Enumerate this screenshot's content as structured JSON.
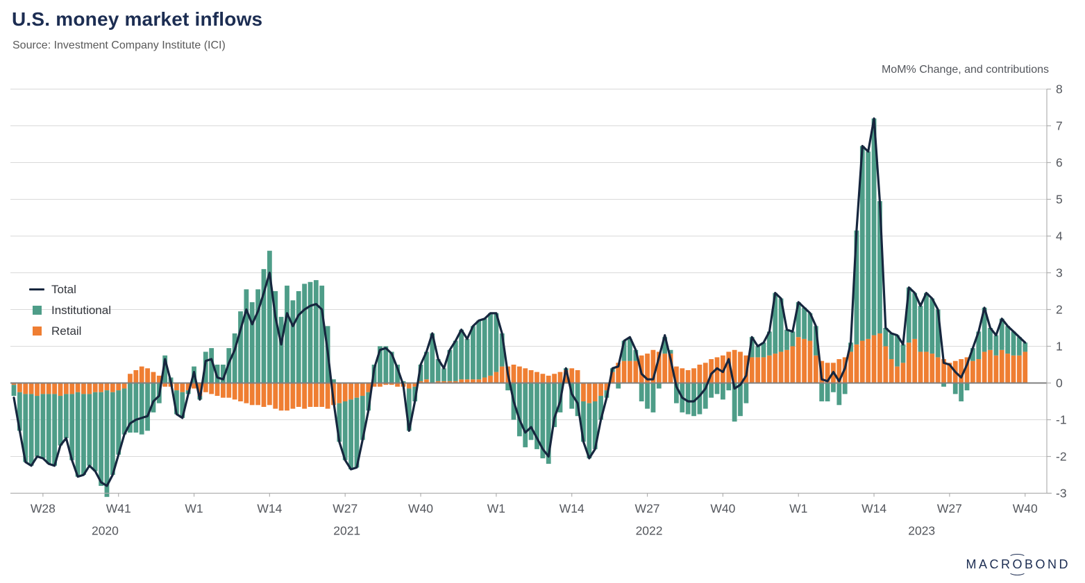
{
  "header": {
    "title": "U.S. money market inflows",
    "source": "Source: Investment Company Institute (ICI)"
  },
  "annotation": "MoM% Change, and contributions",
  "legend": [
    {
      "label": "Total",
      "type": "line",
      "color": "#16263e"
    },
    {
      "label": "Institutional",
      "type": "square",
      "color": "#4e9d88"
    },
    {
      "label": "Retail",
      "type": "square",
      "color": "#ef7e32"
    }
  ],
  "logo": {
    "pre": "MACR",
    "o": "O",
    "post": "BOND"
  },
  "colors": {
    "title": "#1c2d52",
    "text_gray": "#53565c",
    "grid": "#d9d9d9",
    "zero_line": "#7f7f7f",
    "axis": "#b0b0b0",
    "background": "#ffffff"
  },
  "chart_data": {
    "type": "bar",
    "subtype": "weekly stacked contribution bars with total line overlay",
    "title": "U.S. money market inflows",
    "ylabel": "MoM% Change, and contributions",
    "ylim": [
      -3,
      8
    ],
    "yticks": [
      -3,
      -2,
      -1,
      0,
      1,
      2,
      3,
      4,
      5,
      6,
      7,
      8
    ],
    "grid": true,
    "legend_position": "upper-left",
    "x_ticks": [
      {
        "index": 5,
        "label": "W28"
      },
      {
        "index": 18,
        "label": "W41"
      },
      {
        "index": 31,
        "label": "W1"
      },
      {
        "index": 44,
        "label": "W14"
      },
      {
        "index": 57,
        "label": "W27"
      },
      {
        "index": 70,
        "label": "W40"
      },
      {
        "index": 83,
        "label": "W1"
      },
      {
        "index": 96,
        "label": "W14"
      },
      {
        "index": 109,
        "label": "W27"
      },
      {
        "index": 122,
        "label": "W40"
      },
      {
        "index": 135,
        "label": "W1"
      },
      {
        "index": 148,
        "label": "W14"
      },
      {
        "index": 161,
        "label": "W27"
      },
      {
        "index": 174,
        "label": "W40"
      }
    ],
    "year_labels": [
      {
        "label": "2020",
        "index": 15.7
      },
      {
        "label": "2021",
        "index": 57.3
      },
      {
        "label": "2022",
        "index": 109.3
      },
      {
        "label": "2023",
        "index": 156.2
      }
    ],
    "series": [
      {
        "name": "Retail",
        "type": "bar",
        "color": "#ef7e32",
        "values": [
          -0.05,
          -0.25,
          -0.3,
          -0.3,
          -0.35,
          -0.3,
          -0.3,
          -0.3,
          -0.35,
          -0.3,
          -0.3,
          -0.25,
          -0.3,
          -0.3,
          -0.25,
          -0.25,
          -0.2,
          -0.25,
          -0.2,
          -0.15,
          0.25,
          0.35,
          0.45,
          0.4,
          0.3,
          0.2,
          -0.1,
          -0.1,
          -0.2,
          -0.25,
          -0.2,
          -0.15,
          -0.35,
          -0.25,
          -0.3,
          -0.35,
          -0.4,
          -0.4,
          -0.45,
          -0.5,
          -0.55,
          -0.6,
          -0.6,
          -0.65,
          -0.6,
          -0.7,
          -0.75,
          -0.75,
          -0.7,
          -0.65,
          -0.7,
          -0.65,
          -0.65,
          -0.65,
          -0.7,
          -0.6,
          -0.55,
          -0.5,
          -0.45,
          -0.4,
          -0.35,
          -0.25,
          -0.1,
          -0.1,
          -0.05,
          -0.05,
          -0.1,
          -0.1,
          -0.15,
          -0.1,
          0.05,
          0.1,
          0,
          0.05,
          0.05,
          0.05,
          0.05,
          0.1,
          0.1,
          0.1,
          0.1,
          0.15,
          0.2,
          0.3,
          0.45,
          0.45,
          0.5,
          0.45,
          0.4,
          0.35,
          0.3,
          0.25,
          0.2,
          0.25,
          0.3,
          0.35,
          0.4,
          0.35,
          -0.5,
          -0.55,
          -0.5,
          -0.35,
          -0.2,
          0.3,
          0.55,
          0.6,
          0.6,
          0.6,
          0.75,
          0.8,
          0.9,
          0.85,
          0.8,
          0.8,
          0.45,
          0.4,
          0.35,
          0.4,
          0.5,
          0.55,
          0.65,
          0.7,
          0.75,
          0.85,
          0.9,
          0.85,
          0.75,
          0.7,
          0.7,
          0.7,
          0.75,
          0.8,
          0.85,
          0.9,
          1,
          1.25,
          1.2,
          1.15,
          0.75,
          0.6,
          0.55,
          0.55,
          0.65,
          0.7,
          0.85,
          1.05,
          1.15,
          1.2,
          1.3,
          1.35,
          1,
          0.65,
          0.45,
          0.55,
          1.1,
          1.2,
          0.85,
          0.85,
          0.8,
          0.7,
          0.65,
          0.55,
          0.6,
          0.65,
          0.7,
          0.6,
          0.65,
          0.85,
          0.9,
          0.75,
          0.9,
          0.8,
          0.75,
          0.75,
          0.85
        ]
      },
      {
        "name": "Institutional",
        "type": "bar",
        "color": "#4e9d88",
        "values": [
          -0.3,
          -1.05,
          -1.85,
          -1.95,
          -1.65,
          -1.75,
          -1.9,
          -1.95,
          -1.35,
          -1.2,
          -1.8,
          -2.3,
          -2.2,
          -1.95,
          -2.15,
          -2.55,
          -2.9,
          -2.25,
          -1.75,
          -1.25,
          -1.35,
          -1.35,
          -1.4,
          -1.3,
          -0.8,
          -0.55,
          0.75,
          0.15,
          -0.65,
          -0.7,
          -0.1,
          0.45,
          -0.1,
          0.85,
          0.95,
          0.5,
          0.5,
          0.95,
          1.35,
          1.95,
          2.55,
          2.2,
          2.55,
          3.1,
          3.6,
          2.5,
          1.8,
          2.65,
          2.25,
          2.5,
          2.7,
          2.75,
          2.8,
          2.65,
          1.55,
          0.1,
          -1.05,
          -1.6,
          -1.9,
          -1.9,
          -1.2,
          -0.5,
          0.5,
          1,
          1,
          0.85,
          0.5,
          0.05,
          -1.15,
          -0.4,
          0.45,
          0.75,
          1.35,
          0.6,
          0.35,
          0.85,
          1.1,
          1.35,
          1.1,
          1.45,
          1.6,
          1.6,
          1.7,
          1.6,
          0.9,
          -0.2,
          -1,
          -1.45,
          -1.75,
          -1.55,
          -1.8,
          -2.05,
          -2.2,
          -1.2,
          -0.8,
          0.05,
          -0.7,
          -0.9,
          -1.1,
          -1.5,
          -1.3,
          -0.65,
          -0.2,
          0.1,
          -0.15,
          0.55,
          0.6,
          0.3,
          -0.5,
          -0.7,
          -0.8,
          -0.15,
          0.45,
          0.1,
          -0.55,
          -0.8,
          -0.85,
          -0.9,
          -0.85,
          -0.7,
          -0.4,
          -0.3,
          -0.45,
          -0.2,
          -1.05,
          -0.9,
          -0.55,
          0.55,
          0.3,
          0.4,
          0.65,
          1.65,
          1.45,
          0.55,
          0.4,
          0.95,
          0.85,
          0.75,
          0.8,
          -0.5,
          -0.5,
          -0.25,
          -0.6,
          -0.3,
          0.25,
          3.1,
          5.3,
          5.1,
          5.9,
          3.6,
          0.5,
          0.7,
          0.85,
          0.5,
          1.5,
          1.25,
          1.25,
          1.6,
          1.5,
          1.3,
          -0.1,
          0,
          -0.3,
          -0.5,
          -0.2,
          0.35,
          0.75,
          1.2,
          0.6,
          0.55,
          0.85,
          0.75,
          0.65,
          0.5,
          0.25
        ]
      },
      {
        "name": "Total",
        "type": "line",
        "color": "#16263e",
        "values": [
          -0.4,
          -1.3,
          -2.15,
          -2.25,
          -2,
          -2.05,
          -2.2,
          -2.25,
          -1.7,
          -1.5,
          -2.1,
          -2.55,
          -2.5,
          -2.25,
          -2.4,
          -2.7,
          -2.8,
          -2.5,
          -1.95,
          -1.4,
          -1.1,
          -1,
          -0.95,
          -0.9,
          -0.5,
          -0.35,
          0.65,
          0.05,
          -0.85,
          -0.95,
          -0.3,
          0.3,
          -0.45,
          0.6,
          0.65,
          0.15,
          0.1,
          0.55,
          0.9,
          1.45,
          2,
          1.6,
          1.95,
          2.45,
          3,
          1.8,
          1.05,
          1.9,
          1.55,
          1.85,
          2,
          2.1,
          2.15,
          2,
          0.85,
          -0.5,
          -1.6,
          -2.1,
          -2.35,
          -2.3,
          -1.55,
          -0.75,
          0.4,
          0.9,
          0.95,
          0.8,
          0.4,
          -0.05,
          -1.3,
          -0.5,
          0.5,
          0.85,
          1.35,
          0.65,
          0.4,
          0.9,
          1.15,
          1.45,
          1.2,
          1.55,
          1.7,
          1.75,
          1.9,
          1.9,
          1.35,
          0.25,
          -0.5,
          -1,
          -1.35,
          -1.2,
          -1.5,
          -1.8,
          -2,
          -0.95,
          -0.5,
          0.4,
          -0.3,
          -0.55,
          -1.6,
          -2.05,
          -1.8,
          -1,
          -0.4,
          0.4,
          0.45,
          1.15,
          1.25,
          0.9,
          0.25,
          0.1,
          0.1,
          0.7,
          1.3,
          0.65,
          -0.1,
          -0.4,
          -0.5,
          -0.5,
          -0.35,
          -0.15,
          0.25,
          0.4,
          0.3,
          0.65,
          -0.15,
          -0.05,
          0.2,
          1.25,
          1,
          1.1,
          1.4,
          2.45,
          2.3,
          1.45,
          1.4,
          2.2,
          2.05,
          1.9,
          1.55,
          0.1,
          0.05,
          0.3,
          0.05,
          0.4,
          1.1,
          4.15,
          6.45,
          6.3,
          7.2,
          4.95,
          1.5,
          1.35,
          1.3,
          1.05,
          2.6,
          2.45,
          2.1,
          2.45,
          2.3,
          2,
          0.55,
          0.5,
          0.3,
          0.15,
          0.5,
          0.95,
          1.4,
          2.05,
          1.5,
          1.3,
          1.75,
          1.55,
          1.4,
          1.25,
          1.1
        ]
      }
    ]
  }
}
